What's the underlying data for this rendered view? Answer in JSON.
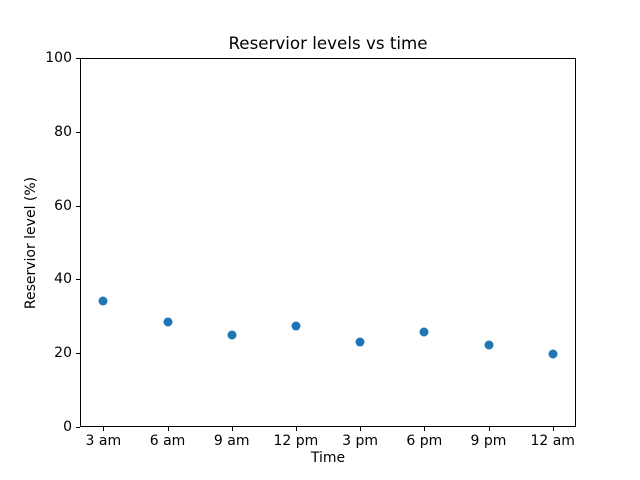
{
  "chart_data": {
    "type": "scatter",
    "title": "Reservior levels vs time",
    "xlabel": "Time",
    "ylabel": "Reservior level (%)",
    "categories": [
      "3 am",
      "6 am",
      "9 am",
      "12 pm",
      "3 pm",
      "6 pm",
      "9 pm",
      "12 am"
    ],
    "values": [
      34.1,
      28.4,
      24.9,
      27.3,
      23.1,
      25.7,
      22.2,
      19.8
    ],
    "ylim": [
      0,
      100
    ],
    "yticks": [
      0,
      20,
      40,
      60,
      80,
      100
    ],
    "marker_color": "#1f77b4",
    "grid": false,
    "legend_position": "none"
  }
}
